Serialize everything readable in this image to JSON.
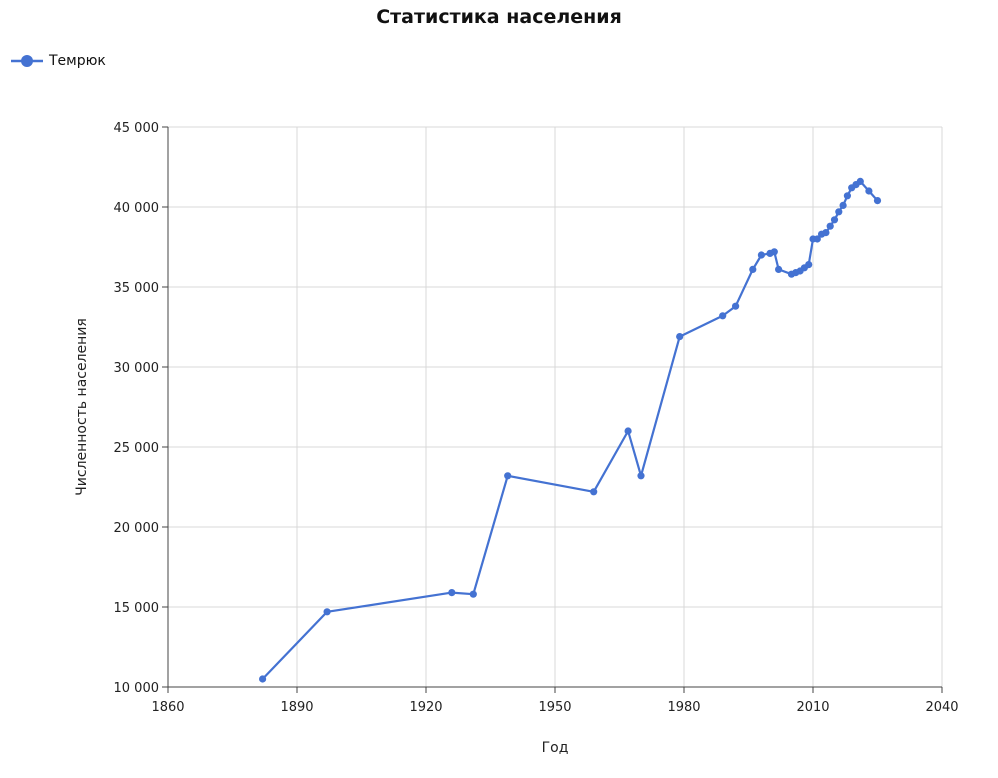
{
  "chart_data": {
    "type": "line",
    "title": "Статистика населения",
    "xlabel": "Год",
    "ylabel": "Численность населения",
    "xlim": [
      1860,
      2040
    ],
    "ylim": [
      10000,
      45000
    ],
    "x_ticks": [
      1860,
      1890,
      1920,
      1950,
      1980,
      2010,
      2040
    ],
    "y_ticks": [
      10000,
      15000,
      20000,
      25000,
      30000,
      35000,
      40000,
      45000
    ],
    "x_tick_labels": [
      "1860",
      "1890",
      "1920",
      "1950",
      "1980",
      "2010",
      "2040"
    ],
    "y_tick_labels": [
      "10 000",
      "15 000",
      "20 000",
      "25 000",
      "30 000",
      "35 000",
      "40 000",
      "45 000"
    ],
    "grid": true,
    "legend_position": "top-left",
    "series": [
      {
        "name": "Темрюк",
        "color": "#4472d2",
        "x": [
          1882,
          1897,
          1926,
          1931,
          1939,
          1959,
          1967,
          1970,
          1979,
          1989,
          1992,
          1996,
          1998,
          2000,
          2001,
          2002,
          2005,
          2006,
          2007,
          2008,
          2009,
          2010,
          2011,
          2012,
          2013,
          2014,
          2015,
          2016,
          2017,
          2018,
          2019,
          2020,
          2021,
          2023,
          2025
        ],
        "y": [
          10500,
          14700,
          15900,
          15800,
          23200,
          22200,
          26000,
          23200,
          31900,
          33200,
          33800,
          36100,
          37000,
          37100,
          37200,
          36100,
          35800,
          35900,
          36000,
          36200,
          36400,
          38000,
          38000,
          38300,
          38400,
          38800,
          39200,
          39700,
          40100,
          40700,
          41200,
          41400,
          41600,
          41000,
          40400
        ]
      }
    ]
  }
}
